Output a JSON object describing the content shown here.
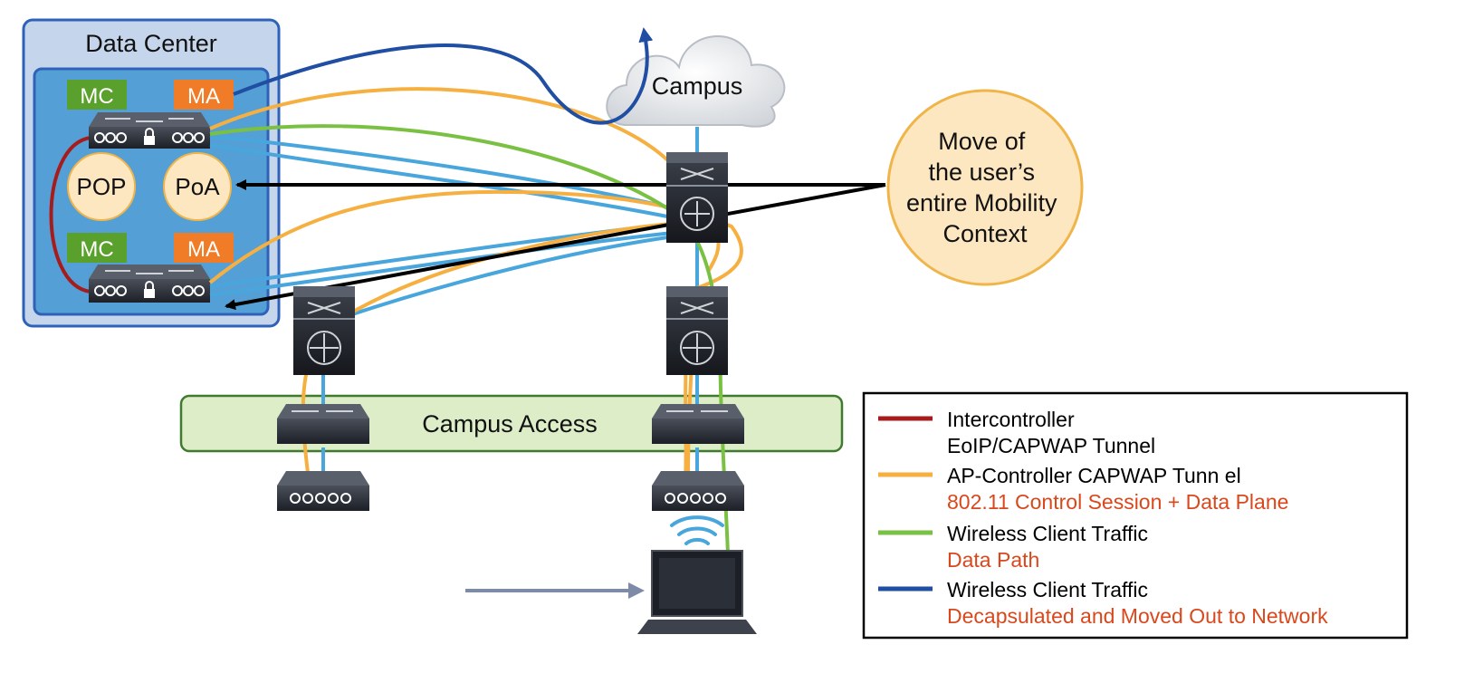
{
  "data_center": {
    "title": "Data Center"
  },
  "controllers": [
    {
      "mc_label": "MC",
      "ma_label": "MA"
    },
    {
      "mc_label": "MC",
      "ma_label": "MA"
    }
  ],
  "points": {
    "pop": "POP",
    "poa": "PoA"
  },
  "cloud": {
    "label": "Campus"
  },
  "campus_access": {
    "label": "Campus Access"
  },
  "callout": {
    "lines": [
      "Move of",
      "the user’s",
      "entire Mobility",
      "Context"
    ]
  },
  "legend": [
    {
      "color": "#a61c1c",
      "line1": "Intercontroller",
      "line2": "EoIP/CAPWAP Tunnel",
      "line2_color": "#000000"
    },
    {
      "color": "#f5b041",
      "line1": "AP-Controller CAPWAP Tunn el",
      "line2": "802.11 Control Session + Data Plane",
      "line2_color": "#d9481c"
    },
    {
      "color": "#7ac143",
      "line1": "Wireless Client Traffic",
      "line2": "Data Path",
      "line2_color": "#d9481c"
    },
    {
      "color": "#1f4ea3",
      "line1": "Wireless Client Traffic",
      "line2": "Decapsulated and Moved Out to Network",
      "line2_color": "#d9481c"
    }
  ],
  "colors": {
    "intercontroller": "#a61c1c",
    "capwap": "#f5b041",
    "client": "#7ac143",
    "decap": "#1f4ea3",
    "link": "#48a6dc",
    "mc_badge": "#5aa02c",
    "ma_badge": "#f07c28"
  }
}
